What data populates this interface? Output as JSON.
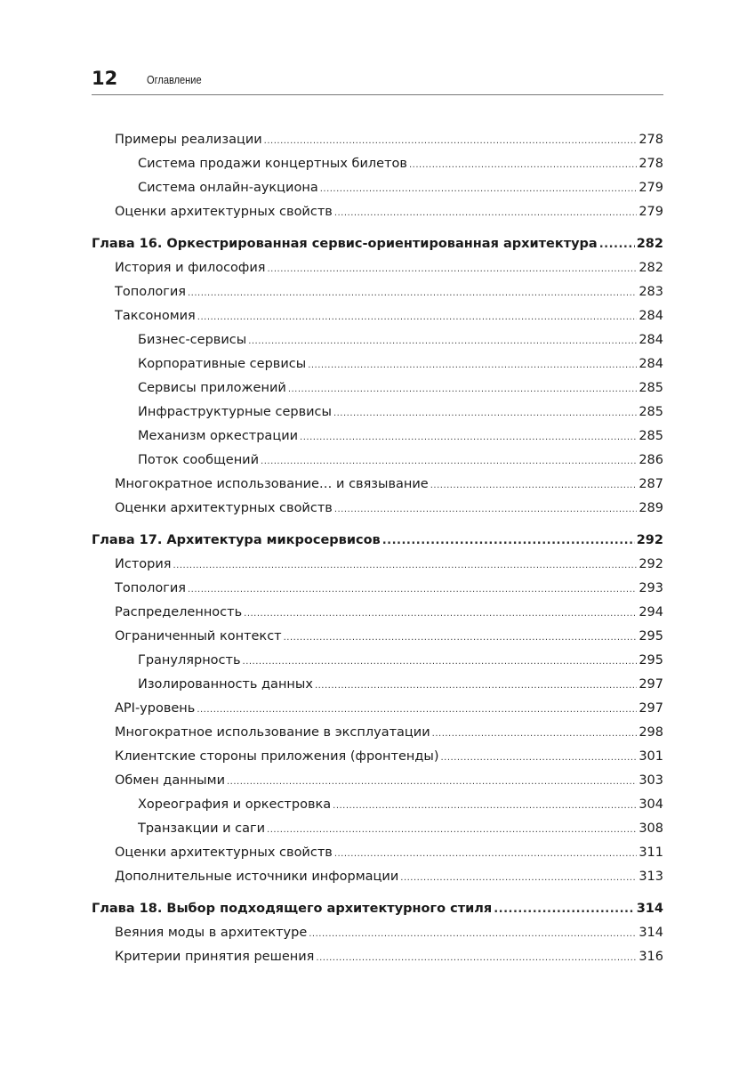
{
  "header": {
    "page_number": "12",
    "title": "Оглавление"
  },
  "toc": [
    {
      "level": 1,
      "title": "Примеры реализации",
      "page": "278"
    },
    {
      "level": 2,
      "title": "Система продажи концертных билетов",
      "page": "278"
    },
    {
      "level": 2,
      "title": "Система онлайн-аукциона",
      "page": "279"
    },
    {
      "level": 1,
      "title": "Оценки архитектурных свойств",
      "page": "279"
    },
    {
      "level": 0,
      "title": "Глава 16. Оркестрированная сервис-ориентированная архитектура",
      "page": "282"
    },
    {
      "level": 1,
      "title": "История и философия",
      "page": "282"
    },
    {
      "level": 1,
      "title": "Топология",
      "page": "283"
    },
    {
      "level": 1,
      "title": "Таксономия",
      "page": "284"
    },
    {
      "level": 2,
      "title": "Бизнес-сервисы",
      "page": "284"
    },
    {
      "level": 2,
      "title": "Корпоративные сервисы",
      "page": "284"
    },
    {
      "level": 2,
      "title": "Сервисы приложений",
      "page": "285"
    },
    {
      "level": 2,
      "title": "Инфраструктурные сервисы",
      "page": "285"
    },
    {
      "level": 2,
      "title": "Механизм оркестрации",
      "page": "285"
    },
    {
      "level": 2,
      "title": "Поток сообщений",
      "page": "286"
    },
    {
      "level": 1,
      "title": "Многократное использование… и связывание",
      "page": "287"
    },
    {
      "level": 1,
      "title": "Оценки архитектурных свойств",
      "page": "289"
    },
    {
      "level": 0,
      "title": "Глава 17. Архитектура микросервисов",
      "page": "292"
    },
    {
      "level": 1,
      "title": "История",
      "page": "292"
    },
    {
      "level": 1,
      "title": "Топология",
      "page": "293"
    },
    {
      "level": 1,
      "title": "Распределенность",
      "page": "294"
    },
    {
      "level": 1,
      "title": "Ограниченный контекст",
      "page": "295"
    },
    {
      "level": 2,
      "title": "Гранулярность",
      "page": "295"
    },
    {
      "level": 2,
      "title": "Изолированность данных",
      "page": "297"
    },
    {
      "level": 1,
      "title": "API-уровень",
      "page": "297"
    },
    {
      "level": 1,
      "title": "Многократное использование в эксплуатации",
      "page": "298"
    },
    {
      "level": 1,
      "title": "Клиентские стороны приложения (фронтенды)",
      "page": "301"
    },
    {
      "level": 1,
      "title": "Обмен данными",
      "page": "303"
    },
    {
      "level": 2,
      "title": "Хореография и оркестровка",
      "page": "304"
    },
    {
      "level": 2,
      "title": "Транзакции и саги",
      "page": "308"
    },
    {
      "level": 1,
      "title": "Оценки архитектурных свойств",
      "page": "311"
    },
    {
      "level": 1,
      "title": "Дополнительные источники информации",
      "page": "313"
    },
    {
      "level": 0,
      "title": "Глава 18. Выбор подходящего архитектурного стиля",
      "page": "314"
    },
    {
      "level": 1,
      "title": "Веяния моды в архитектуре",
      "page": "314"
    },
    {
      "level": 1,
      "title": "Критерии принятия решения",
      "page": "316"
    }
  ]
}
